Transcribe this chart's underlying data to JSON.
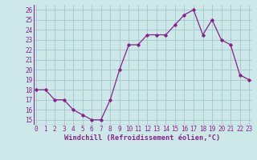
{
  "x": [
    0,
    1,
    2,
    3,
    4,
    5,
    6,
    7,
    8,
    9,
    10,
    11,
    12,
    13,
    14,
    15,
    16,
    17,
    18,
    19,
    20,
    21,
    22,
    23
  ],
  "y": [
    18,
    18,
    17,
    17,
    16,
    15.5,
    15,
    15,
    17,
    20,
    22.5,
    22.5,
    23.5,
    23.5,
    23.5,
    24.5,
    25.5,
    26,
    23.5,
    25,
    23,
    22.5,
    19.5,
    19
  ],
  "line_color": "#882288",
  "marker": "D",
  "marker_size": 1.8,
  "line_width": 0.9,
  "bg_color": "#cce8e8",
  "grid_color": "#aacccc",
  "xlabel": "Windchill (Refroidissement éolien,°C)",
  "xlabel_color": "#882288",
  "xlabel_fontsize": 6.2,
  "tick_color": "#882288",
  "tick_fontsize": 5.5,
  "ylim": [
    14.5,
    26.5
  ],
  "yticks": [
    15,
    16,
    17,
    18,
    19,
    20,
    21,
    22,
    23,
    24,
    25,
    26
  ],
  "xticks": [
    0,
    1,
    2,
    3,
    4,
    5,
    6,
    7,
    8,
    9,
    10,
    11,
    12,
    13,
    14,
    15,
    16,
    17,
    18,
    19,
    20,
    21,
    22,
    23
  ],
  "xlim": [
    -0.3,
    23.3
  ]
}
